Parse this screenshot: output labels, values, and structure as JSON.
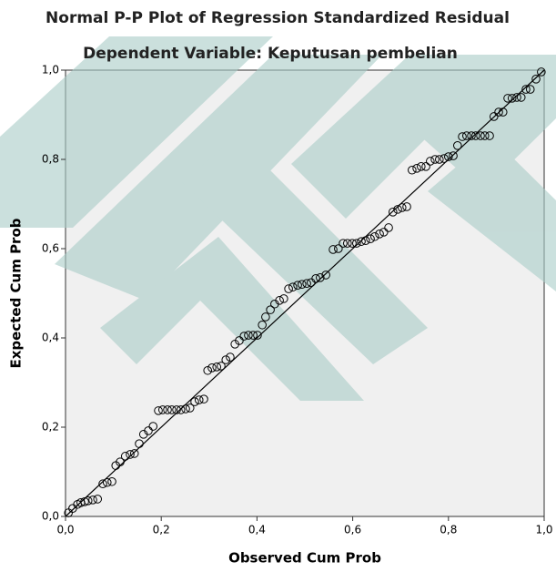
{
  "chart_data": {
    "type": "scatter",
    "title": "Normal P-P Plot of Regression Standardized Residual",
    "subtitle": "Dependent Variable: Keputusan pembelian",
    "x_label": "Observed Cum Prob",
    "y_label": "Expected Cum Prob",
    "color": "#000000",
    "reference_line": true,
    "xlim": [
      0,
      1
    ],
    "ylim": [
      0,
      1
    ],
    "xticks": [
      {
        "value": 0,
        "label": "0,0"
      },
      {
        "value": 0.2,
        "label": "0,2"
      },
      {
        "value": 0.4,
        "label": "0,4"
      },
      {
        "value": 0.6,
        "label": "0,6"
      },
      {
        "value": 0.8,
        "label": "0,8"
      },
      {
        "value": 1,
        "label": "1,0"
      }
    ],
    "yticks": [
      {
        "value": 0,
        "label": "0,0"
      },
      {
        "value": 0.2,
        "label": "0,2"
      },
      {
        "value": 0.4,
        "label": "0,4"
      },
      {
        "value": 0.6,
        "label": "0,6"
      },
      {
        "value": 0.8,
        "label": "0,8"
      },
      {
        "value": 1,
        "label": "1,0"
      }
    ],
    "x": [
      0.006,
      0.015,
      0.025,
      0.032,
      0.04,
      0.047,
      0.057,
      0.067,
      0.078,
      0.087,
      0.097,
      0.105,
      0.114,
      0.125,
      0.135,
      0.144,
      0.154,
      0.163,
      0.173,
      0.183,
      0.194,
      0.203,
      0.213,
      0.222,
      0.232,
      0.241,
      0.251,
      0.26,
      0.27,
      0.279,
      0.289,
      0.297,
      0.306,
      0.316,
      0.325,
      0.335,
      0.344,
      0.354,
      0.363,
      0.373,
      0.382,
      0.392,
      0.401,
      0.411,
      0.418,
      0.428,
      0.437,
      0.447,
      0.456,
      0.466,
      0.475,
      0.485,
      0.494,
      0.504,
      0.513,
      0.523,
      0.532,
      0.544,
      0.559,
      0.57,
      0.58,
      0.589,
      0.599,
      0.608,
      0.618,
      0.627,
      0.637,
      0.646,
      0.656,
      0.665,
      0.675,
      0.684,
      0.694,
      0.703,
      0.713,
      0.724,
      0.734,
      0.743,
      0.753,
      0.762,
      0.772,
      0.781,
      0.791,
      0.8,
      0.81,
      0.819,
      0.829,
      0.838,
      0.848,
      0.857,
      0.867,
      0.876,
      0.886,
      0.895,
      0.905,
      0.914,
      0.924,
      0.933,
      0.943,
      0.952,
      0.962,
      0.971,
      0.983,
      0.994
    ],
    "values": [
      0.008,
      0.018,
      0.027,
      0.031,
      0.033,
      0.035,
      0.037,
      0.039,
      0.073,
      0.076,
      0.078,
      0.114,
      0.122,
      0.135,
      0.139,
      0.141,
      0.163,
      0.184,
      0.192,
      0.202,
      0.237,
      0.239,
      0.239,
      0.239,
      0.239,
      0.239,
      0.241,
      0.243,
      0.257,
      0.261,
      0.263,
      0.327,
      0.333,
      0.335,
      0.337,
      0.351,
      0.357,
      0.386,
      0.394,
      0.404,
      0.406,
      0.406,
      0.406,
      0.429,
      0.447,
      0.463,
      0.476,
      0.484,
      0.488,
      0.51,
      0.514,
      0.518,
      0.52,
      0.522,
      0.524,
      0.533,
      0.535,
      0.541,
      0.598,
      0.6,
      0.612,
      0.612,
      0.612,
      0.612,
      0.616,
      0.618,
      0.622,
      0.627,
      0.633,
      0.637,
      0.647,
      0.682,
      0.688,
      0.692,
      0.694,
      0.776,
      0.78,
      0.784,
      0.784,
      0.796,
      0.8,
      0.8,
      0.802,
      0.806,
      0.808,
      0.831,
      0.851,
      0.853,
      0.853,
      0.853,
      0.853,
      0.853,
      0.853,
      0.896,
      0.906,
      0.906,
      0.937,
      0.937,
      0.939,
      0.939,
      0.957,
      0.957,
      0.98,
      0.996
    ]
  }
}
